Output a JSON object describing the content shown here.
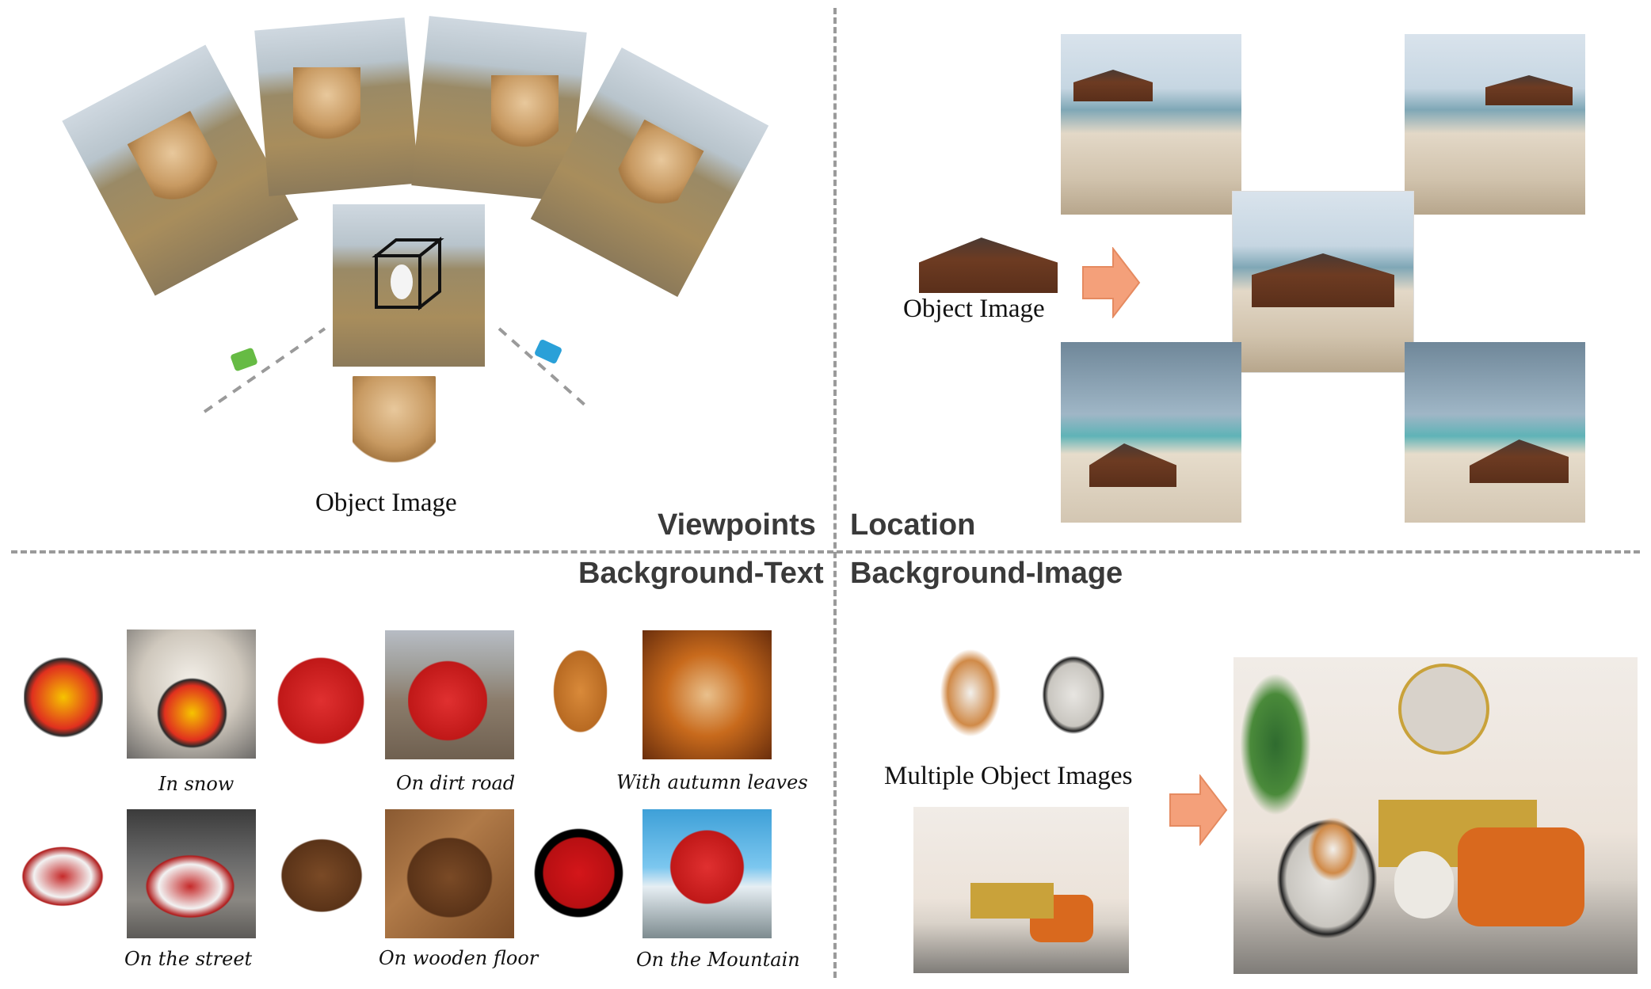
{
  "sections": {
    "viewpoints": "Viewpoints",
    "location": "Location",
    "background_text": "Background-Text",
    "background_image": "Background-Image"
  },
  "labels": {
    "object_image_viewpoints": "Object Image",
    "object_image_location": "Object Image",
    "multiple_object_images": "Multiple Object Images"
  },
  "captions": {
    "in_snow": "In snow",
    "on_dirt_road": "On dirt road",
    "with_autumn_leaves": "With autumn leaves",
    "on_the_street": "On the street",
    "on_wooden_floor": "On wooden floor",
    "on_the_mountain": "On the Mountain"
  },
  "colors": {
    "arrow": "#f4a07a",
    "divider": "#9a9a9a",
    "section_text": "#3a3a3a",
    "camera_green": "#66bb44",
    "camera_blue": "#2aa0d8"
  }
}
